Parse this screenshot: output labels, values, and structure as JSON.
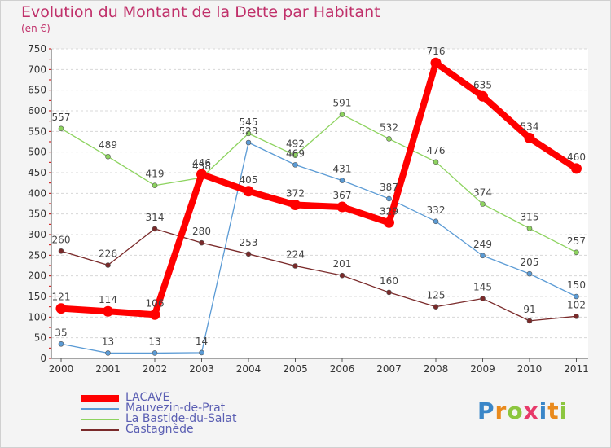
{
  "header": {
    "title": "Evolution du Montant de la Dette par Habitant",
    "subtitle": "(en €)"
  },
  "logo": {
    "text": "Proxiti",
    "letters": [
      {
        "ch": "P",
        "color": "#3a86c8"
      },
      {
        "ch": "r",
        "color": "#e98a1d"
      },
      {
        "ch": "o",
        "color": "#8cc63f"
      },
      {
        "ch": "x",
        "color": "#e73a6a"
      },
      {
        "ch": "i",
        "color": "#3a86c8"
      },
      {
        "ch": "t",
        "color": "#e98a1d"
      },
      {
        "ch": "i",
        "color": "#8cc63f"
      }
    ]
  },
  "chart_data": {
    "type": "line",
    "title": "Evolution du Montant de la Dette par Habitant",
    "ylabel": "(en €)",
    "ylim": [
      0,
      750
    ],
    "yticks": [
      0,
      50,
      100,
      150,
      200,
      250,
      300,
      350,
      400,
      450,
      500,
      550,
      600,
      650,
      700,
      750
    ],
    "x": [
      "2000",
      "2001",
      "2002",
      "2003",
      "2004",
      "2005",
      "2006",
      "2007",
      "2008",
      "2009",
      "2010",
      "2011"
    ],
    "grid": "horizontal dashed",
    "legend_position": "bottom-left",
    "series": [
      {
        "name": "LACAVE",
        "color": "#ff0000",
        "values": [
          121,
          114,
          106,
          446,
          405,
          372,
          367,
          329,
          716,
          635,
          534,
          460
        ]
      },
      {
        "name": "Mauvezin-de-Prat",
        "color": "#5b9bd5",
        "values": [
          35,
          13,
          13,
          14,
          523,
          469,
          431,
          387,
          332,
          249,
          205,
          150
        ]
      },
      {
        "name": "La Bastide-du-Salat",
        "color": "#8dd35f",
        "values": [
          557,
          489,
          419,
          438,
          545,
          492,
          591,
          532,
          476,
          374,
          315,
          257
        ]
      },
      {
        "name": "Castagnède",
        "color": "#7a2a2a",
        "values": [
          260,
          226,
          314,
          280,
          253,
          224,
          201,
          160,
          125,
          145,
          91,
          102
        ]
      }
    ]
  }
}
